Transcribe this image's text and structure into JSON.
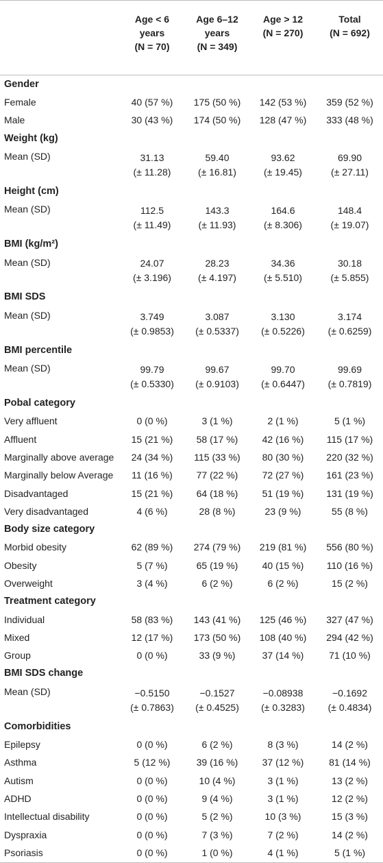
{
  "table": {
    "header": [
      [
        "Age < 6",
        "years",
        "(N = 70)"
      ],
      [
        "Age 6–12",
        "years",
        "(N = 349)"
      ],
      [
        "Age > 12",
        "(N = 270)"
      ],
      [
        "Total",
        "(N = 692)"
      ]
    ],
    "sections": [
      {
        "title": "Gender",
        "rows": [
          {
            "label": "Female",
            "cells": [
              [
                "40 (57 %)"
              ],
              [
                "175 (50 %)"
              ],
              [
                "142 (53 %)"
              ],
              [
                "359 (52 %)"
              ]
            ]
          },
          {
            "label": "Male",
            "cells": [
              [
                "30 (43 %)"
              ],
              [
                "174 (50 %)"
              ],
              [
                "128 (47 %)"
              ],
              [
                "333 (48 %)"
              ]
            ]
          }
        ]
      },
      {
        "title": "Weight (kg)",
        "rows": [
          {
            "label": "Mean (SD)",
            "cells": [
              [
                "31.13",
                "(± 11.28)"
              ],
              [
                "59.40",
                "(± 16.81)"
              ],
              [
                "93.62",
                "(± 19.45)"
              ],
              [
                "69.90",
                "(± 27.11)"
              ]
            ]
          }
        ]
      },
      {
        "title": "Height (cm)",
        "rows": [
          {
            "label": "Mean (SD)",
            "cells": [
              [
                "112.5",
                "(± 11.49)"
              ],
              [
                "143.3",
                "(± 11.93)"
              ],
              [
                "164.6",
                "(± 8.306)"
              ],
              [
                "148.4",
                "(± 19.07)"
              ]
            ]
          }
        ]
      },
      {
        "title": "BMI (kg/m²)",
        "rows": [
          {
            "label": "Mean (SD)",
            "cells": [
              [
                "24.07",
                "(± 3.196)"
              ],
              [
                "28.23",
                "(± 4.197)"
              ],
              [
                "34.36",
                "(± 5.510)"
              ],
              [
                "30.18",
                "(± 5.855)"
              ]
            ]
          }
        ]
      },
      {
        "title": "BMI SDS",
        "rows": [
          {
            "label": "Mean (SD)",
            "cells": [
              [
                "3.749",
                "(± 0.9853)"
              ],
              [
                "3.087",
                "(± 0.5337)"
              ],
              [
                "3.130",
                "(± 0.5226)"
              ],
              [
                "3.174",
                "(± 0.6259)"
              ]
            ]
          }
        ]
      },
      {
        "title": "BMI percentile",
        "rows": [
          {
            "label": "Mean (SD)",
            "cells": [
              [
                "99.79",
                "(± 0.5330)"
              ],
              [
                "99.67",
                "(± 0.9103)"
              ],
              [
                "99.70",
                "(± 0.6447)"
              ],
              [
                "99.69",
                "(± 0.7819)"
              ]
            ]
          }
        ]
      },
      {
        "title": "Pobal category",
        "rows": [
          {
            "label": "Very affluent",
            "cells": [
              [
                "0 (0 %)"
              ],
              [
                "3 (1 %)"
              ],
              [
                "2 (1 %)"
              ],
              [
                "5 (1 %)"
              ]
            ]
          },
          {
            "label": "Affluent",
            "cells": [
              [
                "15 (21 %)"
              ],
              [
                "58 (17 %)"
              ],
              [
                "42 (16 %)"
              ],
              [
                "115 (17 %)"
              ]
            ]
          },
          {
            "label": "Marginally above average",
            "cells": [
              [
                "24 (34 %)"
              ],
              [
                "115 (33 %)"
              ],
              [
                "80 (30 %)"
              ],
              [
                "220 (32 %)"
              ]
            ]
          },
          {
            "label": "Marginally below Average",
            "cells": [
              [
                "11 (16 %)"
              ],
              [
                "77 (22 %)"
              ],
              [
                "72 (27 %)"
              ],
              [
                "161 (23 %)"
              ]
            ]
          },
          {
            "label": "Disadvantaged",
            "cells": [
              [
                "15 (21 %)"
              ],
              [
                "64 (18 %)"
              ],
              [
                "51 (19 %)"
              ],
              [
                "131 (19 %)"
              ]
            ]
          },
          {
            "label": "Very disadvantaged",
            "cells": [
              [
                "4 (6 %)"
              ],
              [
                "28 (8 %)"
              ],
              [
                "23 (9 %)"
              ],
              [
                "55 (8 %)"
              ]
            ]
          }
        ]
      },
      {
        "title": "Body size category",
        "rows": [
          {
            "label": "Morbid obesity",
            "cells": [
              [
                "62 (89 %)"
              ],
              [
                "274 (79 %)"
              ],
              [
                "219 (81 %)"
              ],
              [
                "556 (80 %)"
              ]
            ]
          },
          {
            "label": "Obesity",
            "cells": [
              [
                "5 (7 %)"
              ],
              [
                "65 (19 %)"
              ],
              [
                "40 (15 %)"
              ],
              [
                "110 (16 %)"
              ]
            ]
          },
          {
            "label": "Overweight",
            "cells": [
              [
                "3 (4 %)"
              ],
              [
                "6 (2 %)"
              ],
              [
                "6 (2 %)"
              ],
              [
                "15 (2 %)"
              ]
            ]
          }
        ]
      },
      {
        "title": "Treatment category",
        "rows": [
          {
            "label": "Individual",
            "cells": [
              [
                "58 (83 %)"
              ],
              [
                "143 (41 %)"
              ],
              [
                "125 (46 %)"
              ],
              [
                "327 (47 %)"
              ]
            ]
          },
          {
            "label": "Mixed",
            "cells": [
              [
                "12 (17 %)"
              ],
              [
                "173 (50 %)"
              ],
              [
                "108 (40 %)"
              ],
              [
                "294 (42 %)"
              ]
            ]
          },
          {
            "label": "Group",
            "cells": [
              [
                "0 (0 %)"
              ],
              [
                "33 (9 %)"
              ],
              [
                "37 (14 %)"
              ],
              [
                "71 (10 %)"
              ]
            ]
          }
        ]
      },
      {
        "title": "BMI SDS change",
        "rows": [
          {
            "label": "Mean (SD)",
            "cells": [
              [
                "−0.5150",
                "(± 0.7863)"
              ],
              [
                "−0.1527",
                "(± 0.4525)"
              ],
              [
                "−0.08938",
                "(± 0.3283)"
              ],
              [
                "−0.1692",
                "(± 0.4834)"
              ]
            ]
          }
        ]
      },
      {
        "title": "Comorbidities",
        "rows": [
          {
            "label": "Epilepsy",
            "cells": [
              [
                "0 (0 %)"
              ],
              [
                "6 (2 %)"
              ],
              [
                "8 (3 %)"
              ],
              [
                "14 (2 %)"
              ]
            ]
          },
          {
            "label": "Asthma",
            "cells": [
              [
                "5 (12 %)"
              ],
              [
                "39 (16 %)"
              ],
              [
                "37 (12 %)"
              ],
              [
                "81 (14 %)"
              ]
            ]
          },
          {
            "label": "Autism",
            "cells": [
              [
                "0 (0 %)"
              ],
              [
                "10 (4 %)"
              ],
              [
                "3 (1 %)"
              ],
              [
                "13 (2 %)"
              ]
            ]
          },
          {
            "label": "ADHD",
            "cells": [
              [
                "0 (0 %)"
              ],
              [
                "9 (4 %)"
              ],
              [
                "3 (1 %)"
              ],
              [
                "12 (2 %)"
              ]
            ]
          },
          {
            "label": "Intellectual disability",
            "cells": [
              [
                "0 (0 %)"
              ],
              [
                "5 (2 %)"
              ],
              [
                "10 (3 %)"
              ],
              [
                "15 (3 %)"
              ]
            ]
          },
          {
            "label": "Dyspraxia",
            "cells": [
              [
                "0 (0 %)"
              ],
              [
                "7 (3 %)"
              ],
              [
                "7 (2 %)"
              ],
              [
                "14 (2 %)"
              ]
            ]
          },
          {
            "label": "Psoriasis",
            "cells": [
              [
                "0 (0 %)"
              ],
              [
                "1 (0 %)"
              ],
              [
                "4 (1 %)"
              ],
              [
                "5 (1 %)"
              ]
            ]
          }
        ]
      }
    ]
  }
}
